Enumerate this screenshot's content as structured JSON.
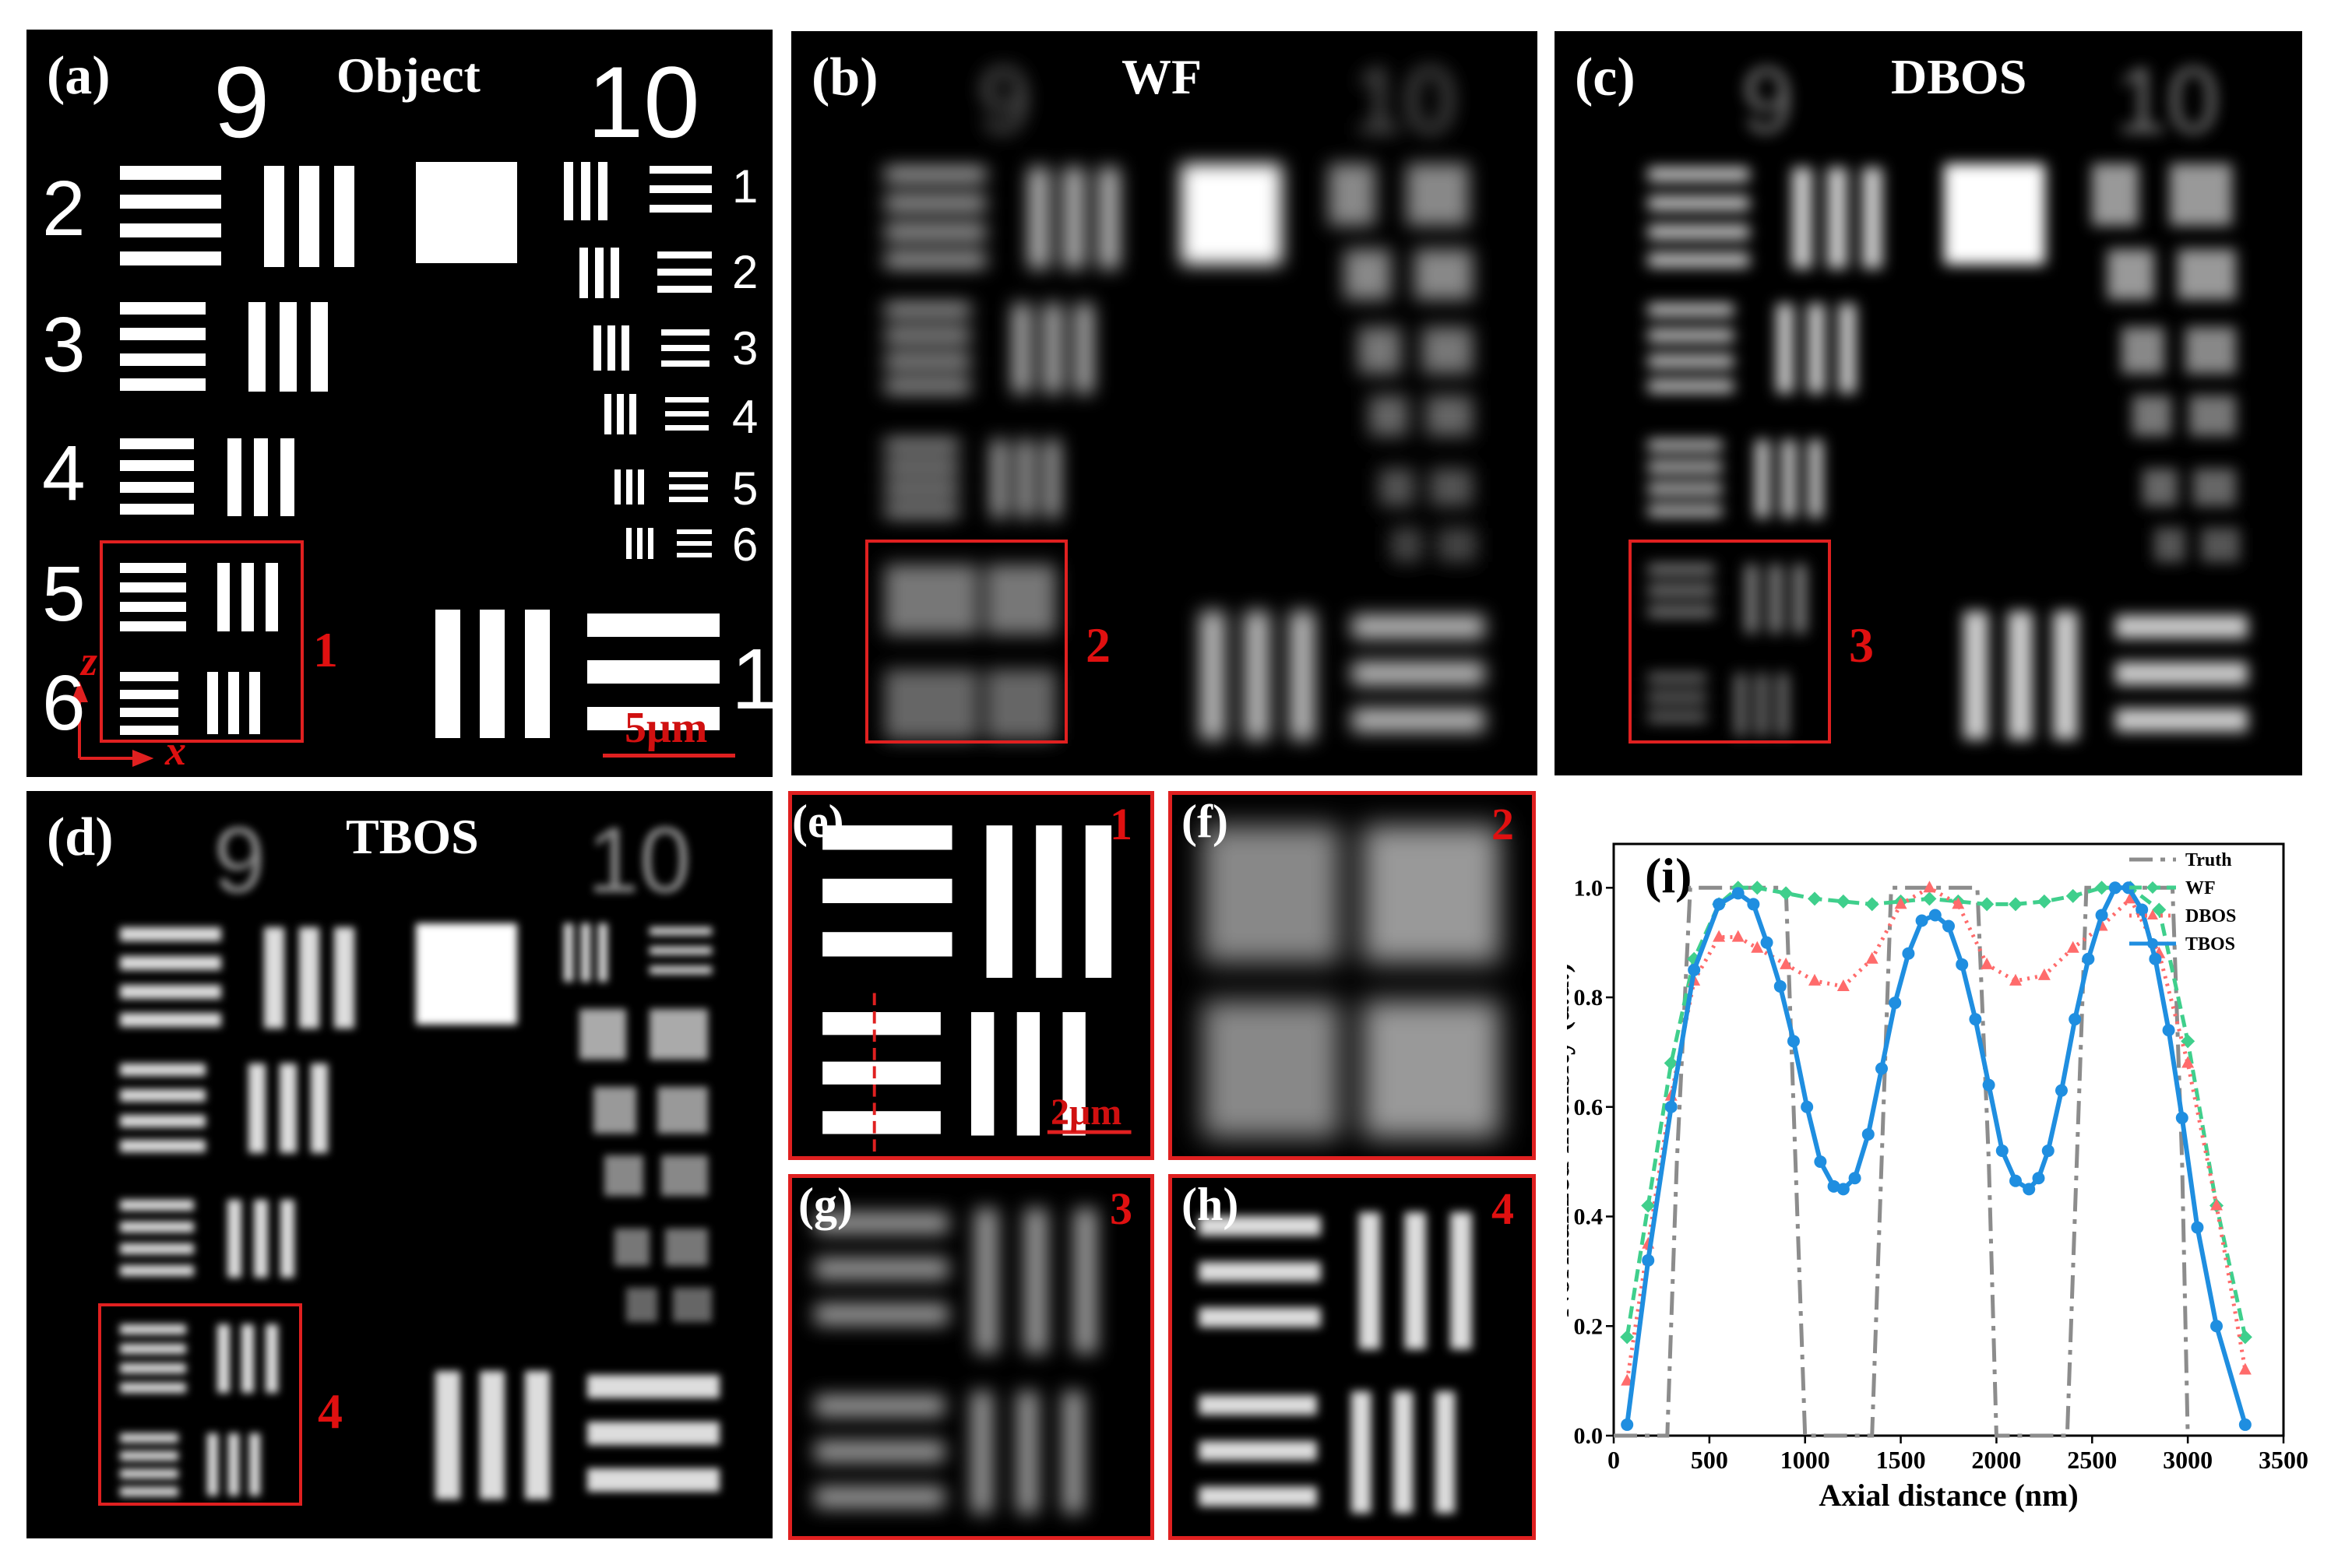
{
  "panels": {
    "a": {
      "tag": "(a)",
      "title": "Object"
    },
    "b": {
      "tag": "(b)",
      "title": "WF"
    },
    "c": {
      "tag": "(c)",
      "title": "DBOS"
    },
    "d": {
      "tag": "(d)",
      "title": "TBOS"
    },
    "e": {
      "tag": "(e)",
      "num": "1",
      "scale": "2μm"
    },
    "f": {
      "tag": "(f)",
      "num": "2"
    },
    "g": {
      "tag": "(g)",
      "num": "3"
    },
    "h": {
      "tag": "(h)",
      "num": "4"
    }
  },
  "target": {
    "group_top": "9",
    "group_top_right": "10",
    "left_elements": [
      "2",
      "3",
      "4",
      "5",
      "6"
    ],
    "right_elements": [
      "1",
      "2",
      "3",
      "4",
      "5",
      "6"
    ],
    "bottom_element": "1"
  },
  "roi_numbers": {
    "a": "1",
    "b": "2",
    "c": "3",
    "d": "4"
  },
  "axes_labels": {
    "z": "z",
    "x": "x"
  },
  "scale_bar": "5μm",
  "chart_data": {
    "type": "line",
    "tag": "(i)",
    "xlabel": "Axial distance (nm)",
    "ylabel": "Normalized intensity (a.u.)",
    "xlim": [
      0,
      3500
    ],
    "ylim": [
      0,
      1.08
    ],
    "xticks": [
      0,
      500,
      1000,
      1500,
      2000,
      2500,
      3000,
      3500
    ],
    "yticks": [
      0.0,
      0.2,
      0.4,
      0.6,
      0.8,
      1.0
    ],
    "legend_position": "top-right",
    "series": [
      {
        "name": "Truth",
        "color": "#8c8c8c",
        "dash": "30,10,6,10",
        "marker": "none",
        "x": [
          0,
          280,
          330,
          400,
          460,
          900,
          950,
          1000,
          1350,
          1400,
          1450,
          1900,
          1960,
          2000,
          2370,
          2420,
          2470,
          2920,
          2970,
          3000
        ],
        "y": [
          0.0,
          0.0,
          0.5,
          1.0,
          1.0,
          1.0,
          0.5,
          0.0,
          0.0,
          0.5,
          1.0,
          1.0,
          0.5,
          0.0,
          0.0,
          0.5,
          1.0,
          1.0,
          0.5,
          0.0
        ]
      },
      {
        "name": "WF",
        "color": "#3fcf8c",
        "dash": "16,8",
        "marker": "diamond",
        "x": [
          70,
          180,
          300,
          420,
          550,
          650,
          750,
          900,
          1050,
          1200,
          1350,
          1500,
          1650,
          1800,
          1950,
          2100,
          2250,
          2400,
          2550,
          2700,
          2850,
          3000,
          3150,
          3300
        ],
        "y": [
          0.18,
          0.42,
          0.68,
          0.87,
          0.97,
          1.0,
          1.0,
          0.99,
          0.98,
          0.975,
          0.97,
          0.975,
          0.98,
          0.975,
          0.97,
          0.97,
          0.975,
          0.985,
          1.0,
          1.0,
          0.96,
          0.72,
          0.42,
          0.18
        ]
      },
      {
        "name": "DBOS",
        "color": "#ff6b6b",
        "dash": "3,7",
        "marker": "triangle",
        "x": [
          70,
          180,
          300,
          420,
          550,
          650,
          750,
          900,
          1050,
          1200,
          1350,
          1500,
          1650,
          1800,
          1950,
          2100,
          2250,
          2400,
          2550,
          2700,
          2850,
          3000,
          3150,
          3300
        ],
        "y": [
          0.1,
          0.35,
          0.62,
          0.83,
          0.91,
          0.91,
          0.89,
          0.86,
          0.83,
          0.82,
          0.87,
          0.97,
          1.0,
          0.97,
          0.86,
          0.83,
          0.84,
          0.89,
          0.93,
          0.98,
          0.88,
          0.68,
          0.42,
          0.12
        ]
      },
      {
        "name": "TBOS",
        "color": "#1f8ee0",
        "dash": "",
        "marker": "circle",
        "x": [
          70,
          180,
          300,
          420,
          550,
          650,
          730,
          800,
          870,
          940,
          1010,
          1080,
          1150,
          1200,
          1260,
          1330,
          1400,
          1470,
          1540,
          1610,
          1680,
          1750,
          1820,
          1890,
          1960,
          2030,
          2100,
          2170,
          2220,
          2270,
          2340,
          2410,
          2480,
          2550,
          2620,
          2690,
          2760,
          2830,
          2900,
          2970,
          3050,
          3150,
          3300
        ],
        "y": [
          0.02,
          0.32,
          0.6,
          0.85,
          0.97,
          0.99,
          0.97,
          0.9,
          0.82,
          0.72,
          0.6,
          0.5,
          0.455,
          0.45,
          0.47,
          0.55,
          0.67,
          0.79,
          0.88,
          0.94,
          0.95,
          0.93,
          0.86,
          0.76,
          0.64,
          0.52,
          0.465,
          0.45,
          0.47,
          0.52,
          0.63,
          0.76,
          0.87,
          0.95,
          1.0,
          1.0,
          0.96,
          0.87,
          0.74,
          0.58,
          0.38,
          0.2,
          0.02
        ]
      }
    ]
  }
}
